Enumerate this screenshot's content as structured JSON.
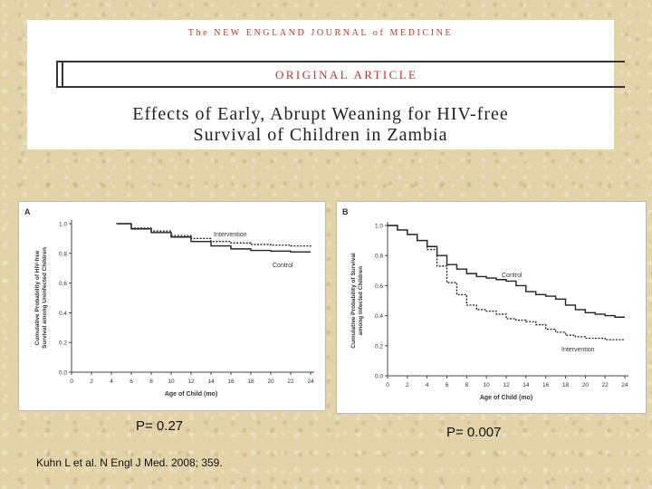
{
  "header": {
    "journal": "The NEW ENGLAND JOURNAL of MEDICINE",
    "article_type": "ORIGINAL ARTICLE",
    "title_line1": "Effects of Early, Abrupt Weaning for HIV-free",
    "title_line2": "Survival of Children in Zambia"
  },
  "pvalues": {
    "a": "P= 0.27",
    "b": "P= 0.007"
  },
  "citation": "Kuhn L et al. N Engl J Med. 2008; 359.",
  "chart_data": [
    {
      "panel_label": "A",
      "type": "line",
      "xlabel": "Age of Child (mo)",
      "ylabel": [
        "Cumulative Probability of HIV-free",
        "Survival among Uninfected Children"
      ],
      "xlim": [
        0,
        24
      ],
      "ylim": [
        0.0,
        1.0
      ],
      "xticks": [
        "0",
        "2",
        "4",
        "6",
        "8",
        "10",
        "12",
        "14",
        "16",
        "18",
        "20",
        "22",
        "24"
      ],
      "yticks": [
        "0.0",
        "0.2",
        "0.4",
        "0.6",
        "0.8",
        "1.0"
      ],
      "series": [
        {
          "name": "Intervention",
          "style": "dashed",
          "points": [
            [
              4.5,
              1.0
            ],
            [
              6,
              0.97
            ],
            [
              8,
              0.95
            ],
            [
              10,
              0.92
            ],
            [
              12,
              0.9
            ],
            [
              14,
              0.88
            ],
            [
              16,
              0.87
            ],
            [
              18,
              0.86
            ],
            [
              20,
              0.855
            ],
            [
              22,
              0.85
            ],
            [
              24,
              0.845
            ]
          ]
        },
        {
          "name": "Control",
          "style": "solid",
          "points": [
            [
              4.5,
              1.0
            ],
            [
              6,
              0.965
            ],
            [
              8,
              0.94
            ],
            [
              10,
              0.91
            ],
            [
              12,
              0.88
            ],
            [
              14,
              0.85
            ],
            [
              16,
              0.83
            ],
            [
              18,
              0.82
            ],
            [
              20,
              0.815
            ],
            [
              22,
              0.81
            ],
            [
              24,
              0.81
            ]
          ]
        }
      ]
    },
    {
      "panel_label": "B",
      "type": "line",
      "xlabel": "Age of Child (mo)",
      "ylabel": [
        "Cumulative Probability of Survival",
        "among Infected Children"
      ],
      "xlim": [
        0,
        24
      ],
      "ylim": [
        0.0,
        1.0
      ],
      "xticks": [
        "0",
        "2",
        "4",
        "6",
        "8",
        "10",
        "12",
        "14",
        "16",
        "18",
        "20",
        "22",
        "24"
      ],
      "yticks": [
        "0.0",
        "0.2",
        "0.4",
        "0.6",
        "0.8",
        "1.0"
      ],
      "series": [
        {
          "name": "Control",
          "style": "solid",
          "points": [
            [
              0,
              1.0
            ],
            [
              1,
              0.97
            ],
            [
              2,
              0.94
            ],
            [
              3,
              0.9
            ],
            [
              4,
              0.86
            ],
            [
              5,
              0.8
            ],
            [
              6,
              0.74
            ],
            [
              7,
              0.71
            ],
            [
              8,
              0.68
            ],
            [
              9,
              0.66
            ],
            [
              10,
              0.65
            ],
            [
              11,
              0.64
            ],
            [
              12,
              0.63
            ],
            [
              13,
              0.6
            ],
            [
              14,
              0.56
            ],
            [
              15,
              0.54
            ],
            [
              16,
              0.53
            ],
            [
              17,
              0.51
            ],
            [
              18,
              0.47
            ],
            [
              19,
              0.44
            ],
            [
              20,
              0.42
            ],
            [
              21,
              0.41
            ],
            [
              22,
              0.4
            ],
            [
              23,
              0.39
            ],
            [
              24,
              0.39
            ]
          ]
        },
        {
          "name": "Intervention",
          "style": "dashed",
          "points": [
            [
              0,
              1.0
            ],
            [
              1,
              0.97
            ],
            [
              2,
              0.94
            ],
            [
              3,
              0.9
            ],
            [
              4,
              0.84
            ],
            [
              5,
              0.73
            ],
            [
              6,
              0.62
            ],
            [
              7,
              0.54
            ],
            [
              8,
              0.47
            ],
            [
              9,
              0.44
            ],
            [
              10,
              0.43
            ],
            [
              11,
              0.41
            ],
            [
              12,
              0.38
            ],
            [
              13,
              0.37
            ],
            [
              14,
              0.36
            ],
            [
              15,
              0.34
            ],
            [
              16,
              0.31
            ],
            [
              17,
              0.29
            ],
            [
              18,
              0.27
            ],
            [
              19,
              0.26
            ],
            [
              20,
              0.25
            ],
            [
              21,
              0.25
            ],
            [
              22,
              0.24
            ],
            [
              23,
              0.24
            ],
            [
              24,
              0.24
            ]
          ]
        }
      ]
    }
  ]
}
